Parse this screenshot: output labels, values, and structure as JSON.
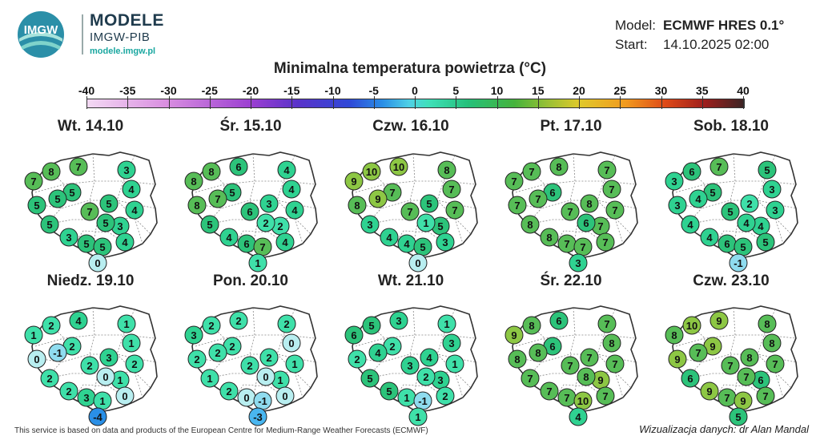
{
  "header": {
    "logo_name": "MODELE",
    "logo_sub": "IMGW-PIB",
    "logo_url": "modele.imgw.pl",
    "logo_mark": "IMGW",
    "model_key": "Model:",
    "model_value": "ECMWF HRES 0.1°",
    "start_key": "Start:",
    "start_value": "14.10.2025 02:00"
  },
  "title": "Minimalna temperatura powietrza (°C)",
  "colorbar": {
    "ticks": [
      "-40",
      "-35",
      "-30",
      "-25",
      "-20",
      "-15",
      "-10",
      "-5",
      "0",
      "5",
      "10",
      "15",
      "20",
      "25",
      "30",
      "35",
      "40"
    ]
  },
  "panels": [
    {
      "title": "Wt. 14.10",
      "values": [
        8,
        7,
        3,
        7,
        5,
        4,
        4,
        5,
        7,
        5,
        5,
        3,
        5,
        5,
        3,
        5,
        5,
        4,
        0
      ]
    },
    {
      "title": "Śr. 15.10",
      "values": [
        8,
        6,
        4,
        8,
        5,
        4,
        4,
        7,
        6,
        3,
        8,
        2,
        2,
        5,
        4,
        6,
        7,
        4,
        1
      ]
    },
    {
      "title": "Czw. 16.10",
      "values": [
        10,
        10,
        8,
        9,
        7,
        7,
        7,
        9,
        7,
        5,
        8,
        5,
        1,
        3,
        4,
        4,
        5,
        3,
        0
      ]
    },
    {
      "title": "Pt. 17.10",
      "values": [
        7,
        8,
        7,
        7,
        6,
        7,
        7,
        7,
        7,
        8,
        7,
        7,
        6,
        8,
        8,
        7,
        7,
        7,
        3
      ]
    },
    {
      "title": "Sob. 18.10",
      "values": [
        6,
        7,
        5,
        3,
        5,
        3,
        3,
        4,
        5,
        2,
        3,
        4,
        4,
        4,
        4,
        6,
        5,
        5,
        -1
      ]
    },
    {
      "title": "Niedz. 19.10",
      "values": [
        2,
        4,
        1,
        1,
        2,
        1,
        2,
        -1,
        2,
        3,
        0,
        1,
        0,
        2,
        2,
        3,
        1,
        0,
        -4
      ]
    },
    {
      "title": "Pon. 20.10",
      "values": [
        2,
        2,
        2,
        3,
        2,
        0,
        1,
        2,
        2,
        2,
        2,
        1,
        0,
        1,
        2,
        0,
        -1,
        0,
        -3
      ]
    },
    {
      "title": "Wt. 21.10",
      "values": [
        5,
        3,
        1,
        6,
        2,
        3,
        1,
        4,
        3,
        4,
        2,
        3,
        2,
        5,
        5,
        1,
        -1,
        2,
        1
      ]
    },
    {
      "title": "Śr. 22.10",
      "values": [
        8,
        6,
        7,
        9,
        6,
        8,
        7,
        8,
        7,
        7,
        8,
        9,
        8,
        7,
        7,
        7,
        10,
        7,
        4
      ]
    },
    {
      "title": "Czw. 23.10",
      "values": [
        10,
        9,
        8,
        8,
        9,
        8,
        7,
        7,
        7,
        8,
        9,
        6,
        7,
        6,
        9,
        7,
        9,
        7,
        5
      ]
    }
  ],
  "footer": {
    "left": "This service is based on data and products of the European Centre for Medium-Range Weather Forecasts (ECMWF)",
    "right": "Wizualizacja danych: dr Alan Mandal"
  },
  "colors": {
    "scale": [
      {
        "t": -5,
        "c": "#2a8fe6"
      },
      {
        "t": -3,
        "c": "#49b6f0"
      },
      {
        "t": -1,
        "c": "#8fdcef"
      },
      {
        "t": 0,
        "c": "#b8eef0"
      },
      {
        "t": 1,
        "c": "#3fe0a9"
      },
      {
        "t": 3,
        "c": "#2fd291"
      },
      {
        "t": 5,
        "c": "#2cc37a"
      },
      {
        "t": 7,
        "c": "#57bd57"
      },
      {
        "t": 9,
        "c": "#8dc744"
      },
      {
        "t": 11,
        "c": "#b4cf3c"
      }
    ]
  }
}
